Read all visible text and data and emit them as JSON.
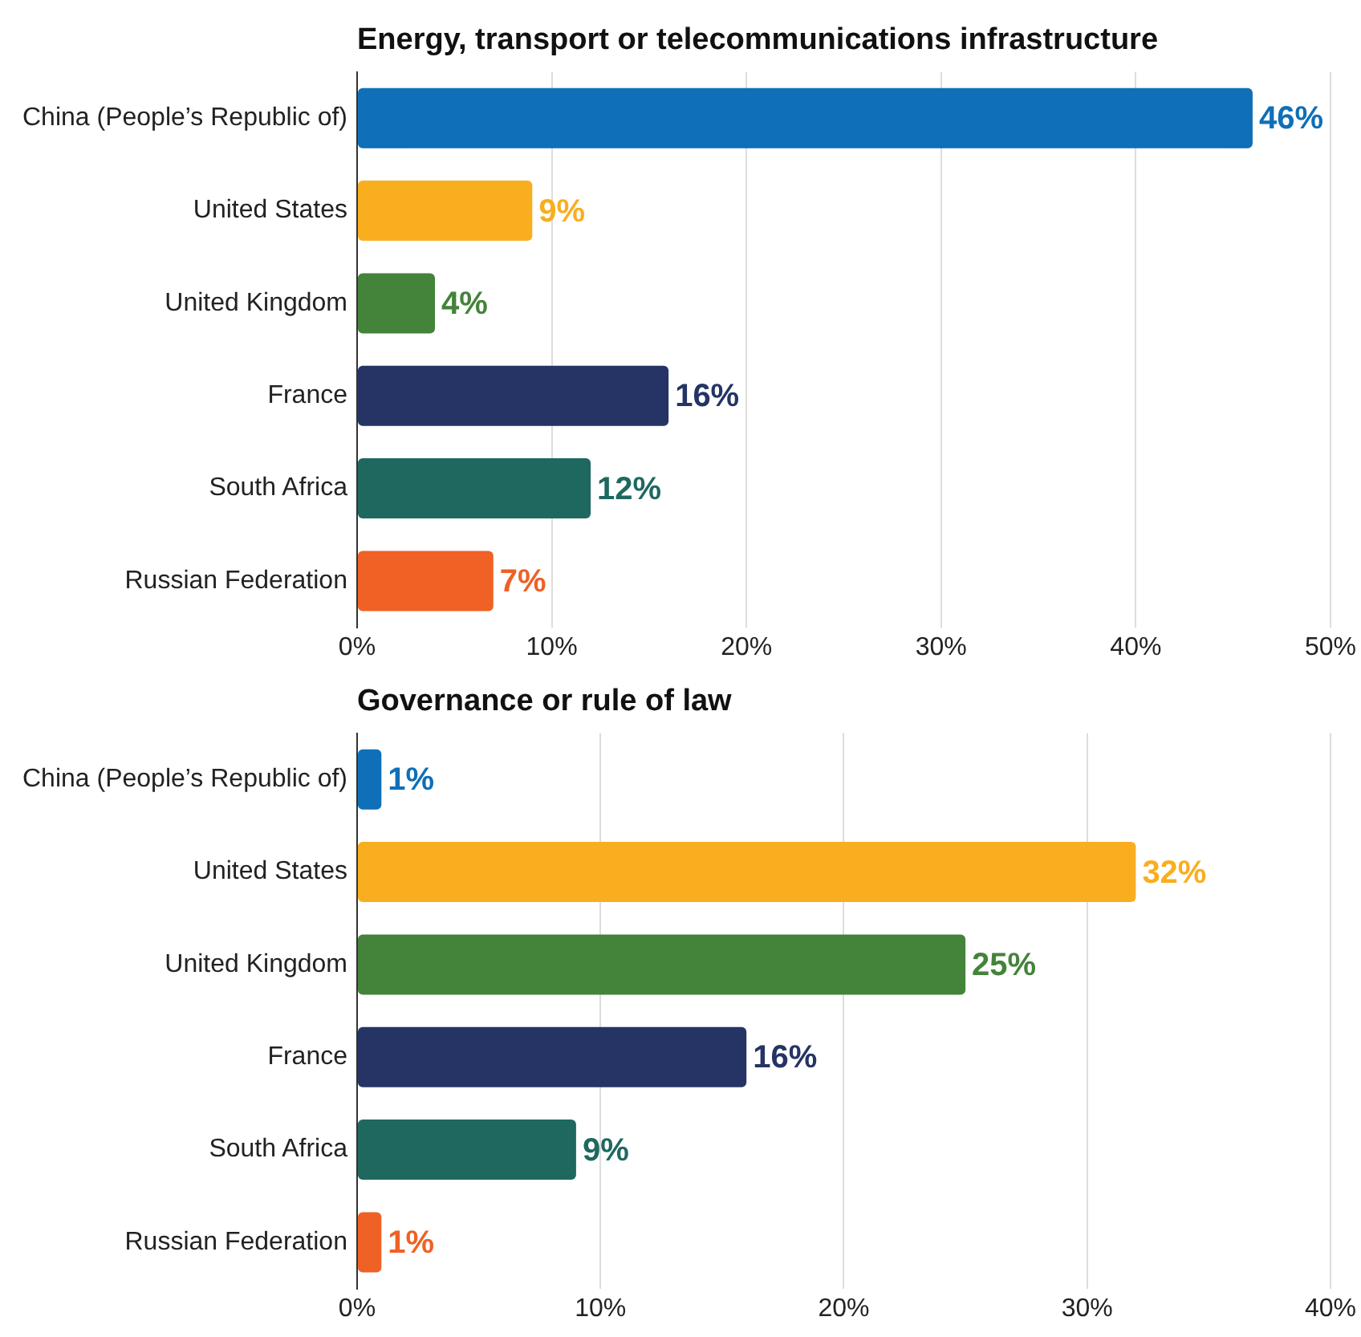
{
  "chart_data": [
    {
      "type": "bar",
      "orientation": "horizontal",
      "title": "Energy, transport or telecommunications infrastructure",
      "categories": [
        "China (People’s Republic of)",
        "United States",
        "United Kingdom",
        "France",
        "South Africa",
        "Russian Federation"
      ],
      "values": [
        46,
        9,
        4,
        16,
        12,
        7
      ],
      "colors": [
        "#0f6fb8",
        "#f9ae1f",
        "#44833a",
        "#253465",
        "#1f6860",
        "#ef6125"
      ],
      "value_labels": [
        "46%",
        "9%",
        "4%",
        "16%",
        "12%",
        "7%"
      ],
      "xlim": [
        0,
        50
      ],
      "xticks": [
        {
          "value": 0,
          "label": "0%"
        },
        {
          "value": 10,
          "label": "10%"
        },
        {
          "value": 20,
          "label": "20%"
        },
        {
          "value": 30,
          "label": "30%"
        },
        {
          "value": 40,
          "label": "40%"
        },
        {
          "value": 50,
          "label": "50%"
        }
      ],
      "grid": "x",
      "legend": false
    },
    {
      "type": "bar",
      "orientation": "horizontal",
      "title": "Governance or rule of law",
      "categories": [
        "China (People’s Republic of)",
        "United States",
        "United Kingdom",
        "France",
        "South Africa",
        "Russian Federation"
      ],
      "values": [
        1,
        32,
        25,
        16,
        9,
        1
      ],
      "colors": [
        "#0f6fb8",
        "#f9ae1f",
        "#44833a",
        "#253465",
        "#1f6860",
        "#ef6125"
      ],
      "value_labels": [
        "1%",
        "32%",
        "25%",
        "16%",
        "9%",
        "1%"
      ],
      "xlim": [
        0,
        40
      ],
      "xticks": [
        {
          "value": 0,
          "label": "0%"
        },
        {
          "value": 10,
          "label": "10%"
        },
        {
          "value": 20,
          "label": "20%"
        },
        {
          "value": 30,
          "label": "30%"
        },
        {
          "value": 40,
          "label": "40%"
        }
      ],
      "grid": "x",
      "legend": false
    }
  ]
}
